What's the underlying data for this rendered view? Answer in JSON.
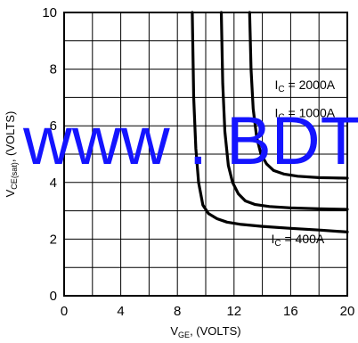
{
  "chart_data": {
    "type": "line",
    "xlabel": {
      "main": "V",
      "sub": "GE",
      "rest": ", (VOLTS)"
    },
    "ylabel": {
      "main": "V",
      "sub": "CE(sat)",
      "rest": ", (VOLTS)"
    },
    "xlim": [
      0,
      20
    ],
    "ylim": [
      0,
      10
    ],
    "x_ticks": [
      "0",
      "4",
      "8",
      "12",
      "16",
      "20"
    ],
    "y_ticks": [
      "0",
      "2",
      "4",
      "6",
      "8",
      "10"
    ],
    "grid": true,
    "watermark": "www . BDT",
    "watermark_color": "#1414ff",
    "series": [
      {
        "name": "",
        "label": {
          "main": "I",
          "sub": "C",
          "rest": " = 400A"
        },
        "x": [
          9.05,
          9.15,
          9.3,
          9.5,
          9.8,
          10.2,
          10.8,
          11.5,
          12.5,
          14,
          16,
          18,
          20
        ],
        "y": [
          10,
          7.0,
          5.2,
          4.0,
          3.2,
          2.9,
          2.72,
          2.6,
          2.52,
          2.45,
          2.38,
          2.32,
          2.25
        ]
      },
      {
        "name": "",
        "label": {
          "main": "I",
          "sub": "C",
          "rest": " = 1000A"
        },
        "x": [
          11.1,
          11.2,
          11.35,
          11.6,
          11.9,
          12.3,
          12.8,
          13.5,
          14.5,
          16,
          18,
          20
        ],
        "y": [
          10,
          7.5,
          5.8,
          4.6,
          4.0,
          3.6,
          3.35,
          3.22,
          3.15,
          3.1,
          3.07,
          3.05
        ]
      },
      {
        "name": "",
        "label": {
          "main": "I",
          "sub": "C",
          "rest": " = 2000A"
        },
        "x": [
          13.1,
          13.2,
          13.35,
          13.6,
          13.9,
          14.3,
          14.8,
          15.5,
          16.5,
          18,
          19,
          20
        ],
        "y": [
          10,
          8.0,
          6.6,
          5.6,
          5.0,
          4.65,
          4.42,
          4.3,
          4.22,
          4.17,
          4.16,
          4.15
        ]
      }
    ],
    "colors": {
      "curve": "#000000",
      "grid": "#000000",
      "background": "#ffffff"
    }
  }
}
